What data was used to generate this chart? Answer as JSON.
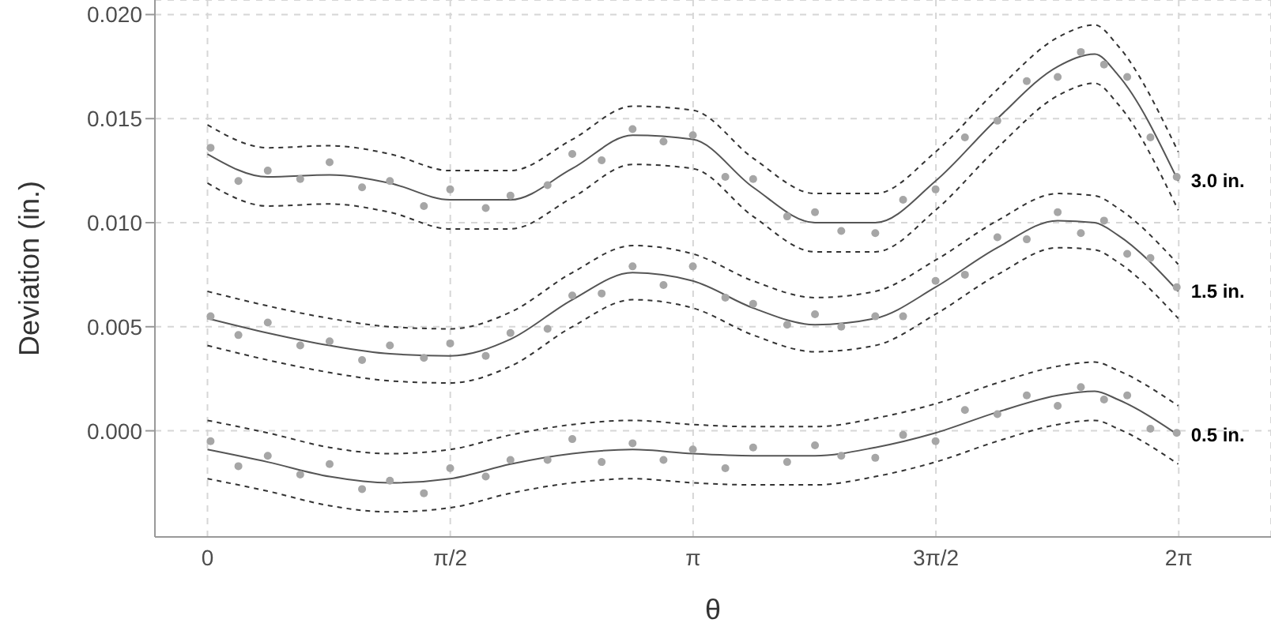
{
  "chart_data": {
    "type": "scatter",
    "xlabel": "θ",
    "ylabel": "Deviation (in.)",
    "xlim": [
      -0.34,
      6.88
    ],
    "ylim": [
      -0.0051,
      0.0207
    ],
    "xticks": [
      0,
      {
        "value": 1.5708,
        "label": "π/2"
      },
      {
        "value": 3.1416,
        "label": "π"
      },
      {
        "value": 4.7124,
        "label": "3π/2"
      },
      {
        "value": 6.2832,
        "label": "2π"
      }
    ],
    "yticks": [
      {
        "value": 0,
        "label": "0.000"
      },
      {
        "value": 0.005,
        "label": "0.005"
      },
      {
        "value": 0.01,
        "label": "0.010"
      },
      {
        "value": 0.015,
        "label": "0.015"
      },
      {
        "value": 0.02,
        "label": "0.020"
      }
    ],
    "grid": true,
    "legend": false,
    "series": [
      {
        "marker": "circle",
        "color": "#a6a6a6",
        "x": [
          0.02,
          0.2,
          0.39,
          0.6,
          0.79,
          1.0,
          1.18,
          1.4,
          1.57,
          1.8,
          1.96,
          2.2,
          2.36,
          2.55,
          2.75,
          2.95,
          3.14,
          3.35,
          3.53,
          3.75,
          3.93,
          4.1,
          4.32,
          4.5,
          4.71,
          4.9,
          5.11,
          5.3,
          5.5,
          5.65,
          5.8,
          5.95,
          6.1,
          6.27
        ],
        "values": [
          0.0136,
          0.012,
          0.0125,
          0.0121,
          0.0129,
          0.0117,
          0.012,
          0.0108,
          0.0116,
          0.0107,
          0.0113,
          0.0118,
          0.0133,
          0.013,
          0.0145,
          0.0139,
          0.0142,
          0.0122,
          0.0121,
          0.0103,
          0.0105,
          0.0096,
          0.0095,
          0.0111,
          0.0116,
          0.0141,
          0.0149,
          0.0168,
          0.017,
          0.0182,
          0.0176,
          0.017,
          0.0141,
          0.0122
        ]
      },
      {
        "marker": "circle",
        "color": "#a6a6a6",
        "x": [
          0.02,
          0.2,
          0.39,
          0.6,
          0.79,
          1.0,
          1.18,
          1.4,
          1.57,
          1.8,
          1.96,
          2.2,
          2.36,
          2.55,
          2.75,
          2.95,
          3.14,
          3.35,
          3.53,
          3.75,
          3.93,
          4.1,
          4.32,
          4.5,
          4.71,
          4.9,
          5.11,
          5.3,
          5.5,
          5.65,
          5.8,
          5.95,
          6.1,
          6.27
        ],
        "values": [
          0.0055,
          0.0046,
          0.0052,
          0.0041,
          0.0043,
          0.0034,
          0.0041,
          0.0035,
          0.0042,
          0.0036,
          0.0047,
          0.0049,
          0.0065,
          0.0066,
          0.0079,
          0.007,
          0.0079,
          0.0064,
          0.0061,
          0.0051,
          0.0056,
          0.005,
          0.0055,
          0.0055,
          0.0072,
          0.0075,
          0.0093,
          0.0092,
          0.0105,
          0.0095,
          0.0101,
          0.0085,
          0.0083,
          0.0069
        ]
      },
      {
        "marker": "circle",
        "color": "#a6a6a6",
        "x": [
          0.02,
          0.2,
          0.39,
          0.6,
          0.79,
          1.0,
          1.18,
          1.4,
          1.57,
          1.8,
          1.96,
          2.2,
          2.36,
          2.55,
          2.75,
          2.95,
          3.14,
          3.35,
          3.53,
          3.75,
          3.93,
          4.1,
          4.32,
          4.5,
          4.71,
          4.9,
          5.11,
          5.3,
          5.5,
          5.65,
          5.8,
          5.95,
          6.1,
          6.27
        ],
        "values": [
          -0.0005,
          -0.0017,
          -0.0012,
          -0.0021,
          -0.0016,
          -0.0028,
          -0.0024,
          -0.003,
          -0.0018,
          -0.0022,
          -0.0014,
          -0.0014,
          -0.0004,
          -0.0015,
          -0.0006,
          -0.0014,
          -0.0009,
          -0.0018,
          -0.0008,
          -0.0015,
          -0.0007,
          -0.0012,
          -0.0013,
          -0.0002,
          -0.0005,
          0.001,
          0.0008,
          0.0017,
          0.0012,
          0.0021,
          0.0015,
          0.0017,
          0.0001,
          -0.0001
        ]
      },
      {
        "type": "line",
        "name": "3.0 in.",
        "color": "#555555",
        "line_style": "solid",
        "x": [
          0,
          0.39,
          0.79,
          1.18,
          1.57,
          1.96,
          2.36,
          2.75,
          3.14,
          3.53,
          3.93,
          4.32,
          4.71,
          5.11,
          5.5,
          5.74,
          5.89,
          6.28
        ],
        "values": [
          0.0133,
          0.0122,
          0.0123,
          0.0119,
          0.0111,
          0.0111,
          0.0126,
          0.0142,
          0.014,
          0.0117,
          0.01,
          0.01,
          0.012,
          0.015,
          0.0175,
          0.0181,
          0.0171,
          0.012
        ]
      },
      {
        "type": "line",
        "name": "1.5 in.",
        "color": "#555555",
        "line_style": "solid",
        "x": [
          0,
          0.39,
          0.79,
          1.18,
          1.57,
          1.96,
          2.36,
          2.75,
          3.14,
          3.53,
          3.93,
          4.32,
          4.71,
          5.11,
          5.5,
          5.74,
          5.89,
          6.28
        ],
        "values": [
          0.0054,
          0.0047,
          0.0041,
          0.0037,
          0.0036,
          0.0044,
          0.0063,
          0.0076,
          0.0072,
          0.0059,
          0.0051,
          0.0054,
          0.0069,
          0.0088,
          0.0101,
          0.01,
          0.0094,
          0.0067
        ]
      },
      {
        "type": "line",
        "name": "0.5 in.",
        "color": "#555555",
        "line_style": "solid",
        "x": [
          0,
          0.39,
          0.79,
          1.18,
          1.57,
          1.96,
          2.36,
          2.75,
          3.14,
          3.53,
          3.93,
          4.32,
          4.71,
          5.11,
          5.5,
          5.74,
          5.89,
          6.28
        ],
        "values": [
          -0.0009,
          -0.0015,
          -0.0022,
          -0.0025,
          -0.0023,
          -0.0016,
          -0.0011,
          -0.0009,
          -0.0011,
          -0.0012,
          -0.0012,
          -0.0008,
          -0.0001,
          0.0009,
          0.0017,
          0.0019,
          0.0015,
          -0.0002
        ]
      },
      {
        "type": "line",
        "color": "#333333",
        "line_style": "dashed",
        "x": [
          0,
          0.39,
          0.79,
          1.18,
          1.57,
          1.96,
          2.36,
          2.75,
          3.14,
          3.53,
          3.93,
          4.32,
          4.71,
          5.11,
          5.5,
          5.74,
          5.89,
          6.28
        ],
        "values": [
          0.0147,
          0.0136,
          0.0137,
          0.0133,
          0.0125,
          0.0125,
          0.014,
          0.0156,
          0.0154,
          0.0131,
          0.0114,
          0.0114,
          0.0134,
          0.0164,
          0.0189,
          0.0195,
          0.0185,
          0.0134
        ]
      },
      {
        "type": "line",
        "color": "#333333",
        "line_style": "dashed",
        "x": [
          0,
          0.39,
          0.79,
          1.18,
          1.57,
          1.96,
          2.36,
          2.75,
          3.14,
          3.53,
          3.93,
          4.32,
          4.71,
          5.11,
          5.5,
          5.74,
          5.89,
          6.28
        ],
        "values": [
          0.0119,
          0.0108,
          0.0109,
          0.0105,
          0.0097,
          0.0097,
          0.0112,
          0.0128,
          0.0126,
          0.0103,
          0.0086,
          0.0086,
          0.0106,
          0.0136,
          0.0161,
          0.0167,
          0.0157,
          0.0106
        ]
      },
      {
        "type": "line",
        "color": "#333333",
        "line_style": "dashed",
        "x": [
          0,
          0.39,
          0.79,
          1.18,
          1.57,
          1.96,
          2.36,
          2.75,
          3.14,
          3.53,
          3.93,
          4.32,
          4.71,
          5.11,
          5.5,
          5.74,
          5.89,
          6.28
        ],
        "values": [
          0.0067,
          0.006,
          0.0054,
          0.005,
          0.0049,
          0.0057,
          0.0076,
          0.0089,
          0.0085,
          0.0072,
          0.0064,
          0.0067,
          0.0082,
          0.0101,
          0.0114,
          0.0113,
          0.0107,
          0.008
        ]
      },
      {
        "type": "line",
        "color": "#333333",
        "line_style": "dashed",
        "x": [
          0,
          0.39,
          0.79,
          1.18,
          1.57,
          1.96,
          2.36,
          2.75,
          3.14,
          3.53,
          3.93,
          4.32,
          4.71,
          5.11,
          5.5,
          5.74,
          5.89,
          6.28
        ],
        "values": [
          0.0041,
          0.0034,
          0.0028,
          0.0024,
          0.0023,
          0.0031,
          0.005,
          0.0063,
          0.0059,
          0.0046,
          0.0038,
          0.0041,
          0.0056,
          0.0075,
          0.0088,
          0.0087,
          0.0081,
          0.0054
        ]
      },
      {
        "type": "line",
        "color": "#333333",
        "line_style": "dashed",
        "x": [
          0,
          0.39,
          0.79,
          1.18,
          1.57,
          1.96,
          2.36,
          2.75,
          3.14,
          3.53,
          3.93,
          4.32,
          4.71,
          5.11,
          5.5,
          5.74,
          5.89,
          6.28
        ],
        "values": [
          0.0005,
          -0.0001,
          -0.0008,
          -0.0011,
          -0.0009,
          -0.0002,
          0.0003,
          0.0005,
          0.0003,
          0.0002,
          0.0002,
          0.0006,
          0.0013,
          0.0023,
          0.0031,
          0.0033,
          0.0029,
          0.0012
        ]
      },
      {
        "type": "line",
        "color": "#333333",
        "line_style": "dashed",
        "x": [
          0,
          0.39,
          0.79,
          1.18,
          1.57,
          1.96,
          2.36,
          2.75,
          3.14,
          3.53,
          3.93,
          4.32,
          4.71,
          5.11,
          5.5,
          5.74,
          5.89,
          6.28
        ],
        "values": [
          -0.0023,
          -0.0029,
          -0.0036,
          -0.0039,
          -0.0037,
          -0.003,
          -0.0025,
          -0.0023,
          -0.0025,
          -0.0026,
          -0.0026,
          -0.0022,
          -0.0015,
          -0.0005,
          0.0003,
          0.0005,
          0.0001,
          -0.0016
        ]
      }
    ]
  }
}
